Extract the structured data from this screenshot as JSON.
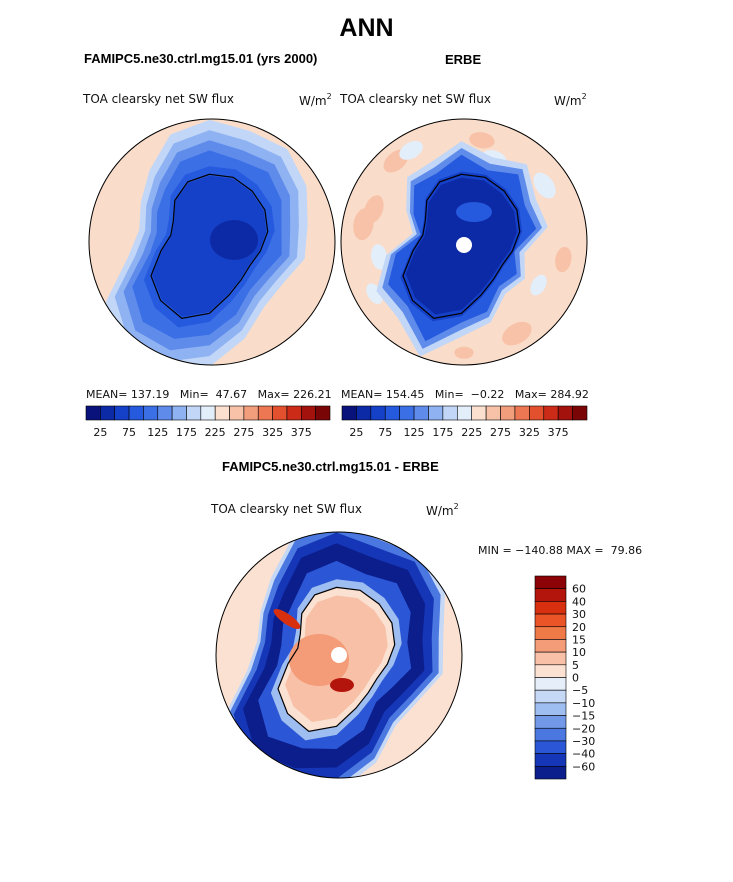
{
  "figure": {
    "title": "ANN",
    "left_panel_header": "FAMIPC5.ne30.ctrl.mg15.01 (yrs 2000)",
    "right_panel_header": "ERBE",
    "diff_panel_header": "FAMIPC5.ne30.ctrl.mg15.01 - ERBE"
  },
  "units": {
    "base": "W/m",
    "exponent": "2"
  },
  "left_map": {
    "variable": "TOA clearsky net SW flux",
    "mean_label": "MEAN=",
    "mean": "137.19",
    "min_label": "Min=",
    "min": "47.67",
    "max_label": "Max=",
    "max": "226.21"
  },
  "right_map": {
    "variable": "TOA clearsky net SW flux",
    "mean_label": "MEAN=",
    "mean": "154.45",
    "min_label": "Min=",
    "min": "−0.22",
    "max_label": "Max=",
    "max": "284.92"
  },
  "diff_map": {
    "variable": "TOA clearsky net SW flux",
    "minmax_text": "MIN = −140.88 MAX =  79.86"
  },
  "colors": {
    "ocean_far": "#f9dcc9",
    "abs_scale": [
      "#08127a",
      "#0d2aa6",
      "#1540c8",
      "#2559de",
      "#3b6fe6",
      "#5f8ceb",
      "#8fb2f2",
      "#c2d7f7",
      "#e3eefb",
      "#fbdfcf",
      "#f7c2a8",
      "#f29e7c",
      "#ec7752",
      "#e3502e",
      "#cc2c17",
      "#a3120c",
      "#7a0506"
    ],
    "diff_scale": [
      "#8b0306",
      "#b3140c",
      "#d8300f",
      "#ea5427",
      "#f07948",
      "#f49b77",
      "#f7c0a7",
      "#fbe1d2",
      "#e6eefa",
      "#c5d8f6",
      "#9ebdf0",
      "#7199e8",
      "#4a78e0",
      "#2b57d6",
      "#1636b8",
      "#0b1e8c"
    ]
  },
  "chart_data": [
    {
      "type": "heatmap",
      "projection": "south-polar-stereographic",
      "title": "TOA clearsky net SW flux",
      "units": "W/m2",
      "source": "FAMIPC5.ne30.ctrl.mg15.01 (yrs 2000)",
      "stats": {
        "mean": 137.19,
        "min": 47.67,
        "max": 226.21
      },
      "colorbar_ticks": [
        "25",
        "75",
        "125",
        "175",
        "225",
        "275",
        "325",
        "375"
      ],
      "contour_levels": [
        25,
        50,
        75,
        100,
        125,
        150,
        175,
        200,
        225,
        250,
        275,
        300,
        325,
        350,
        375,
        400
      ]
    },
    {
      "type": "heatmap",
      "projection": "south-polar-stereographic",
      "title": "TOA clearsky net SW flux",
      "units": "W/m2",
      "source": "ERBE",
      "stats": {
        "mean": 154.45,
        "min": -0.22,
        "max": 284.92
      },
      "colorbar_ticks": [
        "25",
        "75",
        "125",
        "175",
        "225",
        "275",
        "325",
        "375"
      ],
      "contour_levels": [
        25,
        50,
        75,
        100,
        125,
        150,
        175,
        200,
        225,
        250,
        275,
        300,
        325,
        350,
        375,
        400
      ]
    },
    {
      "type": "heatmap",
      "projection": "south-polar-stereographic",
      "title": "TOA clearsky net SW flux",
      "units": "W/m2",
      "source": "FAMIPC5.ne30.ctrl.mg15.01 - ERBE",
      "stats": {
        "min": -140.88,
        "max": 79.86
      },
      "colorbar_ticks": [
        "60",
        "40",
        "30",
        "20",
        "15",
        "10",
        "5",
        "0",
        "−5",
        "−10",
        "−15",
        "−20",
        "−30",
        "−40",
        "−60"
      ]
    }
  ]
}
